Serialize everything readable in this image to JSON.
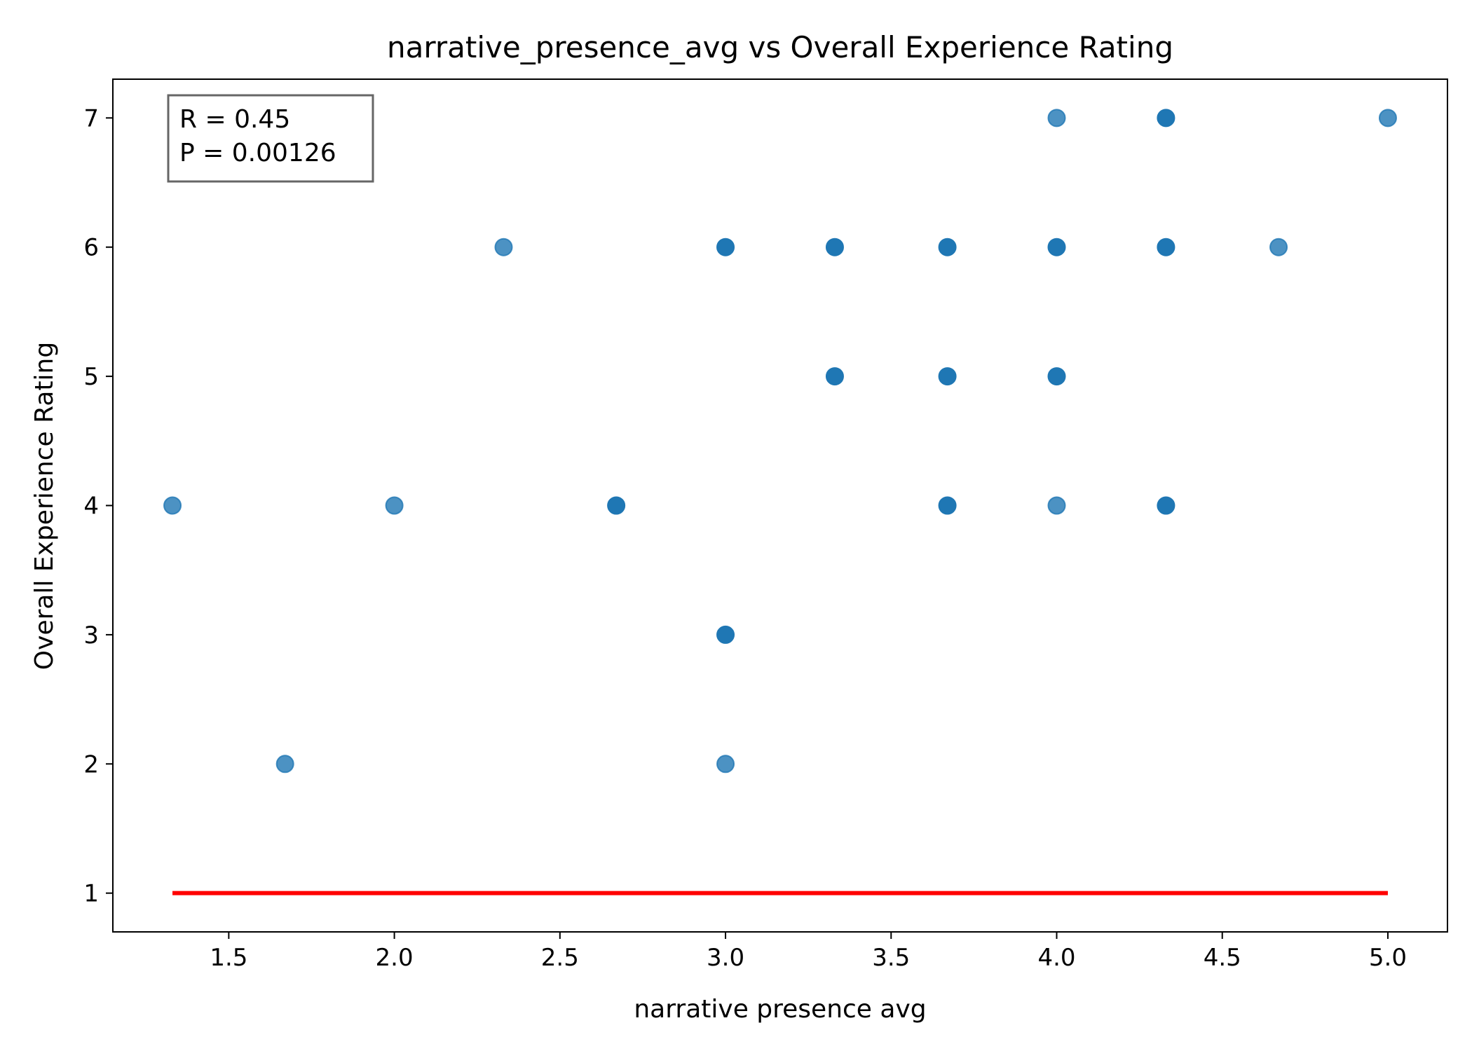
{
  "chart_data": {
    "type": "scatter",
    "title": "narrative_presence_avg vs Overall Experience Rating",
    "xlabel": "narrative presence avg",
    "ylabel": "Overall Experience Rating",
    "xlim": [
      1.15,
      5.18
    ],
    "ylim": [
      0.7,
      7.3
    ],
    "xticks": [
      1.5,
      2.0,
      2.5,
      3.0,
      3.5,
      4.0,
      4.5,
      5.0
    ],
    "xtick_labels": [
      "1.5",
      "2.0",
      "2.5",
      "3.0",
      "3.5",
      "4.0",
      "4.5",
      "5.0"
    ],
    "yticks": [
      1,
      2,
      3,
      4,
      5,
      6,
      7
    ],
    "ytick_labels": [
      "1",
      "2",
      "3",
      "4",
      "5",
      "6",
      "7"
    ],
    "grid": false,
    "point_color": "#1f77b4",
    "trend_color": "#ff0000",
    "points": [
      {
        "x": 1.33,
        "y": 4,
        "alpha": 0.8
      },
      {
        "x": 1.67,
        "y": 2,
        "alpha": 0.8
      },
      {
        "x": 2.0,
        "y": 4,
        "alpha": 0.8
      },
      {
        "x": 2.33,
        "y": 6,
        "alpha": 0.8
      },
      {
        "x": 2.67,
        "y": 4,
        "alpha": 1.0
      },
      {
        "x": 3.0,
        "y": 6,
        "alpha": 1.0
      },
      {
        "x": 3.0,
        "y": 3,
        "alpha": 1.0
      },
      {
        "x": 3.0,
        "y": 2,
        "alpha": 0.8
      },
      {
        "x": 3.33,
        "y": 6,
        "alpha": 1.0
      },
      {
        "x": 3.33,
        "y": 5,
        "alpha": 1.0
      },
      {
        "x": 3.67,
        "y": 6,
        "alpha": 1.0
      },
      {
        "x": 3.67,
        "y": 5,
        "alpha": 1.0
      },
      {
        "x": 3.67,
        "y": 4,
        "alpha": 1.0
      },
      {
        "x": 4.0,
        "y": 7,
        "alpha": 0.8
      },
      {
        "x": 4.0,
        "y": 6,
        "alpha": 1.0
      },
      {
        "x": 4.0,
        "y": 5,
        "alpha": 1.0
      },
      {
        "x": 4.0,
        "y": 4,
        "alpha": 0.8
      },
      {
        "x": 4.33,
        "y": 7,
        "alpha": 1.0
      },
      {
        "x": 4.33,
        "y": 6,
        "alpha": 1.0
      },
      {
        "x": 4.33,
        "y": 4,
        "alpha": 1.0
      },
      {
        "x": 4.67,
        "y": 6,
        "alpha": 0.8
      },
      {
        "x": 5.0,
        "y": 7,
        "alpha": 0.8
      }
    ],
    "trend_line": {
      "x": [
        1.33,
        5.0
      ],
      "y": [
        1.0,
        1.0
      ]
    },
    "annotation": {
      "r_text": "R = 0.45",
      "p_text": "P = 0.00126",
      "placement": "top-left"
    }
  }
}
